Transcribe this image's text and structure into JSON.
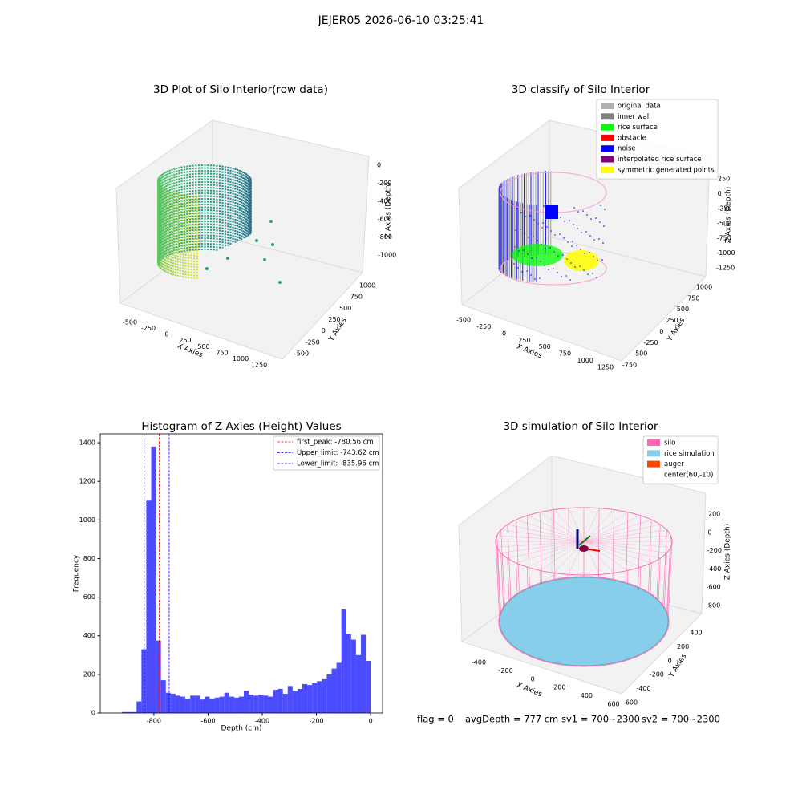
{
  "suptitle": "JEJER05 2026-06-10 03:25:41",
  "chart_data": [
    {
      "type": "scatter3d",
      "title": "3D Plot of Silo Interior(row data)",
      "xlabel": "X Axies",
      "ylabel": "Y Axies",
      "zlabel": "Z Axies (Depth)",
      "xticks": [
        -500,
        -250,
        0,
        250,
        500,
        750,
        1000,
        1250
      ],
      "yticks": [
        -500,
        -250,
        0,
        250,
        500,
        750,
        1000
      ],
      "zticks": [
        0,
        -200,
        -400,
        -600,
        -800,
        -1000
      ]
    },
    {
      "type": "scatter3d",
      "title": "3D classify of Silo Interior",
      "xlabel": "X Axies",
      "ylabel": "Y Axies",
      "zlabel": "Z Axies (Depth)",
      "xticks": [
        -500,
        -250,
        0,
        250,
        500,
        750,
        1000,
        1250
      ],
      "yticks": [
        -750,
        -500,
        -250,
        0,
        250,
        500,
        750,
        1000
      ],
      "zticks": [
        250,
        0,
        -250,
        -500,
        -750,
        -1000,
        -1250
      ],
      "legend": [
        {
          "name": "original data",
          "color": "#b0b0b0"
        },
        {
          "name": "inner wall",
          "color": "#808080"
        },
        {
          "name": "rice surface",
          "color": "#00ff00"
        },
        {
          "name": "obstacle",
          "color": "#ff0000"
        },
        {
          "name": "noise",
          "color": "#0000ff"
        },
        {
          "name": "interpolated rice surface",
          "color": "#800080"
        },
        {
          "name": "symmetric generated points",
          "color": "#ffff00"
        }
      ]
    },
    {
      "type": "histogram",
      "title": "Histogram of Z-Axies (Height) Values",
      "xlabel": "Depth (cm)",
      "ylabel": "Frequency",
      "color": "#0000ff",
      "bins": [
        -918,
        -900,
        -882,
        -864,
        -846,
        -828,
        -810,
        -792,
        -774,
        -756,
        -738,
        -720,
        -702,
        -684,
        -666,
        -648,
        -630,
        -612,
        -594,
        -576,
        -558,
        -540,
        -522,
        -504,
        -486,
        -468,
        -450,
        -432,
        -414,
        -396,
        -378,
        -360,
        -342,
        -324,
        -306,
        -288,
        -270,
        -252,
        -234,
        -216,
        -198,
        -180,
        -162,
        -144,
        -126,
        -108,
        -90,
        -72,
        -54,
        -36,
        -18,
        0
      ],
      "values": [
        5,
        5,
        5,
        60,
        330,
        1100,
        1380,
        375,
        170,
        105,
        100,
        90,
        85,
        75,
        90,
        90,
        70,
        85,
        75,
        80,
        85,
        105,
        85,
        80,
        85,
        115,
        95,
        90,
        95,
        90,
        85,
        120,
        125,
        100,
        140,
        115,
        125,
        150,
        145,
        155,
        165,
        175,
        200,
        230,
        260,
        540,
        410,
        380,
        300,
        405,
        270
      ],
      "xlim": [
        -998,
        44
      ],
      "ylim": [
        0,
        1446
      ],
      "xticks": [
        -800,
        -600,
        -400,
        -200,
        0
      ],
      "yticks": [
        0,
        200,
        400,
        600,
        800,
        1000,
        1200,
        1400
      ],
      "vlines": [
        {
          "name": "first_peak: -780.56 cm",
          "value": -780.56,
          "color": "#ff0000"
        },
        {
          "name": "Upper_limit: -743.62 cm",
          "value": -743.62,
          "color": "#0000ff"
        },
        {
          "name": "Lower_limit: -835.96 cm",
          "value": -835.96,
          "color": "#0000ff"
        }
      ],
      "legend_loc": "upper right"
    },
    {
      "type": "surface3d",
      "title": "3D simulation of Silo Interior",
      "xlabel": "X Axies",
      "ylabel": "Y Axies",
      "zlabel": "Z Axies (Depth)",
      "xticks": [
        -400,
        -200,
        0,
        200,
        400,
        600
      ],
      "yticks": [
        -600,
        -400,
        -200,
        0,
        200,
        400
      ],
      "zticks": [
        200,
        0,
        -200,
        -400,
        -600,
        -800
      ],
      "legend": [
        {
          "name": "silo",
          "color": "#ff69b4"
        },
        {
          "name": "rice simulation",
          "color": "#87ceeb"
        },
        {
          "name": "auger",
          "color": "#ff4500"
        },
        {
          "name": "center(60,-10)",
          "color": "#ffffff"
        }
      ]
    }
  ],
  "footer": [
    "flag = 0",
    "avgDepth = 777 cm",
    "sv1 = 700~2300",
    "sv2 = 700~2300"
  ]
}
